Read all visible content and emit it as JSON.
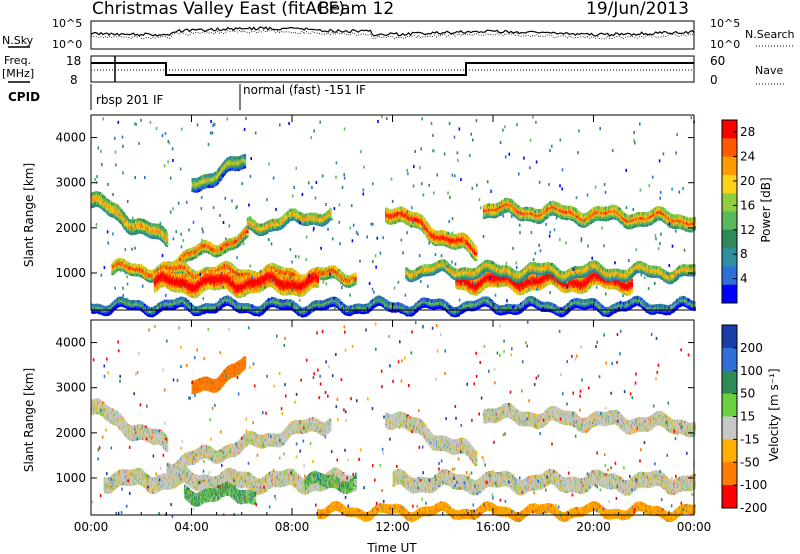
{
  "header": {
    "station": "Christmas Valley East (fitACF)",
    "beam": "Beam 12",
    "date": "19/Jun/2013"
  },
  "panels": {
    "nsky": {
      "left_label": "N.Sky",
      "ticks_left": [
        "10^5",
        "10^0"
      ],
      "ticks_right": [
        "10^5",
        "10^0"
      ],
      "right_label": "N.Search"
    },
    "freq": {
      "left_label_1": "Freq.",
      "left_label_2": "[MHz]",
      "ticks_left": [
        "18",
        "8"
      ],
      "ticks_right": [
        "60",
        "0"
      ],
      "right_label": "Nave"
    },
    "cpid": {
      "label": "CPID",
      "modes": [
        "rbsp 201 IF",
        "normal (fast) -151 IF"
      ]
    }
  },
  "chart_data": [
    {
      "type": "heatmap",
      "title": "Power",
      "xlabel": "Time UT",
      "ylabel": "Slant Range [km]",
      "x_ticks": [
        "00:00",
        "04:00",
        "08:00",
        "12:00",
        "16:00",
        "20:00",
        "00:00"
      ],
      "y_ticks": [
        1000,
        2000,
        3000,
        4000
      ],
      "xlim_hours": [
        0,
        24
      ],
      "ylim_km": [
        180,
        4500
      ],
      "colorbar": {
        "label": "Power [dB]",
        "ticks": [
          4,
          8,
          12,
          16,
          20,
          24,
          28
        ],
        "range": [
          0,
          30
        ],
        "colors": [
          "#0000ff",
          "#2f6fd8",
          "#2f8f9f",
          "#2e8b57",
          "#5cb85c",
          "#8fcf3f",
          "#ffd21a",
          "#ff9a00",
          "#ff5a00",
          "#ff0000"
        ]
      },
      "bands": [
        {
          "t0": 0.0,
          "t1": 3.0,
          "r0": 2650,
          "r1": 1750,
          "w": 300,
          "level": 16
        },
        {
          "t0": 3.0,
          "t1": 6.2,
          "r0": 1250,
          "r1": 1850,
          "w": 230,
          "level": 20
        },
        {
          "t0": 6.2,
          "t1": 9.5,
          "r0": 2050,
          "r1": 2350,
          "w": 230,
          "level": 16
        },
        {
          "t0": 4.0,
          "t1": 6.1,
          "r0": 3000,
          "r1": 3500,
          "w": 280,
          "level": 12
        },
        {
          "t0": 0.8,
          "t1": 10.5,
          "r0": 1120,
          "r1": 960,
          "w": 240,
          "level": 20
        },
        {
          "t0": 2.5,
          "t1": 9.0,
          "r0": 820,
          "r1": 820,
          "w": 380,
          "level": 26
        },
        {
          "t0": 11.7,
          "t1": 15.3,
          "r0": 2450,
          "r1": 1500,
          "w": 300,
          "level": 22
        },
        {
          "t0": 15.6,
          "t1": 24.0,
          "r0": 2450,
          "r1": 2200,
          "w": 280,
          "level": 18
        },
        {
          "t0": 14.5,
          "t1": 21.5,
          "r0": 860,
          "r1": 860,
          "w": 340,
          "level": 26
        },
        {
          "t0": 12.5,
          "t1": 24.0,
          "r0": 1100,
          "r1": 1050,
          "w": 220,
          "level": 16
        },
        {
          "t0": 0.0,
          "t1": 24.0,
          "r0": 300,
          "r1": 300,
          "w": 180,
          "level": 6
        }
      ]
    },
    {
      "type": "heatmap",
      "title": "Velocity",
      "xlabel": "Time UT",
      "ylabel": "Slant Range [km]",
      "x_ticks": [
        "00:00",
        "04:00",
        "08:00",
        "12:00",
        "16:00",
        "20:00",
        "00:00"
      ],
      "y_ticks": [
        1000,
        2000,
        3000,
        4000
      ],
      "xlim_hours": [
        0,
        24
      ],
      "ylim_km": [
        180,
        4500
      ],
      "colorbar": {
        "label": "Velocity [m s⁻¹]",
        "ticks": [
          200,
          100,
          50,
          15,
          -15,
          -50,
          -100,
          -200
        ],
        "colors": [
          "#1a3ea8",
          "#2f6fd8",
          "#2e8b57",
          "#6bd23f",
          "#c8c8c8",
          "#ffb000",
          "#ff7a00",
          "#ff0000"
        ]
      },
      "bands": [
        {
          "t0": 0.0,
          "t1": 3.0,
          "r0": 2600,
          "r1": 1750,
          "w": 300,
          "v": 0
        },
        {
          "t0": 3.0,
          "t1": 9.5,
          "r0": 1300,
          "r1": 2300,
          "w": 260,
          "v": 0
        },
        {
          "t0": 4.0,
          "t1": 6.1,
          "r0": 3000,
          "r1": 3500,
          "w": 260,
          "v": -70
        },
        {
          "t0": 0.5,
          "t1": 10.5,
          "r0": 1000,
          "r1": 960,
          "w": 320,
          "v": 0
        },
        {
          "t0": 3.7,
          "t1": 6.5,
          "r0": 680,
          "r1": 680,
          "w": 260,
          "v": 30
        },
        {
          "t0": 8.5,
          "t1": 10.5,
          "r0": 950,
          "r1": 950,
          "w": 230,
          "v": 30
        },
        {
          "t0": 11.7,
          "t1": 15.3,
          "r0": 2450,
          "r1": 1500,
          "w": 300,
          "v": 0
        },
        {
          "t0": 15.6,
          "t1": 24.0,
          "r0": 2450,
          "r1": 2200,
          "w": 280,
          "v": 0
        },
        {
          "t0": 12.0,
          "t1": 24.0,
          "r0": 950,
          "r1": 950,
          "w": 300,
          "v": 0
        },
        {
          "t0": 9.0,
          "t1": 24.0,
          "r0": 300,
          "r1": 300,
          "w": 170,
          "v": -40
        }
      ]
    }
  ]
}
